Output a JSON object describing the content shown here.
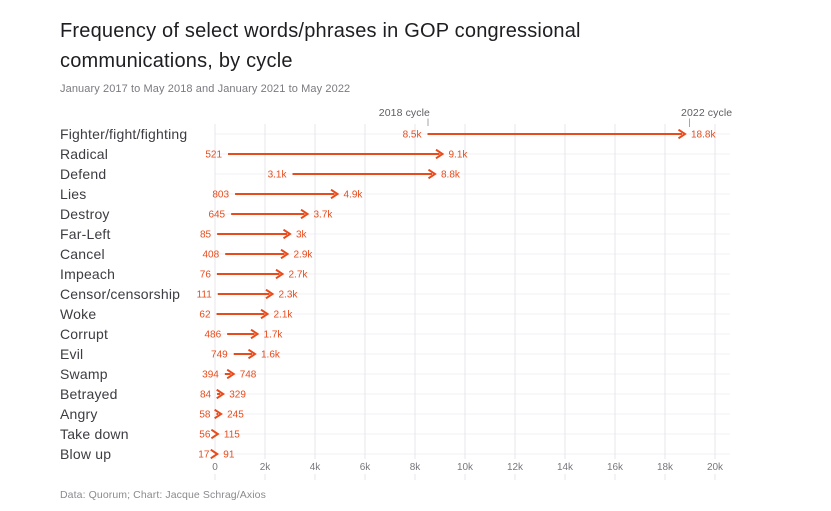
{
  "header": {
    "title": "Frequency of select words/phrases in GOP congressional communications, by cycle",
    "subtitle": "January 2017 to May 2018 and January 2021 to May 2022"
  },
  "footer": {
    "credit": "Data: Quorum; Chart: Jacque Schrag/Axios"
  },
  "chart_data": {
    "type": "arrow",
    "title": "Frequency of select words/phrases in GOP congressional communications, by cycle",
    "subtitle": "January 2017 to May 2018 and January 2021 to May 2022",
    "categories": [
      "Fighter/fight/fighting",
      "Radical",
      "Defend",
      "Lies",
      "Destroy",
      "Far-Left",
      "Cancel",
      "Impeach",
      "Censor/censorship",
      "Woke",
      "Corrupt",
      "Evil",
      "Swamp",
      "Betrayed",
      "Angry",
      "Take down",
      "Blow up"
    ],
    "series": [
      {
        "name": "2018 cycle",
        "values": [
          8500,
          521,
          3100,
          803,
          645,
          85,
          408,
          76,
          111,
          62,
          486,
          749,
          394,
          84,
          58,
          56,
          17
        ],
        "labels": [
          "8.5k",
          "521",
          "3.1k",
          "803",
          "645",
          "85",
          "408",
          "76",
          "111",
          "62",
          "486",
          "749",
          "394",
          "84",
          "58",
          "56",
          "17"
        ]
      },
      {
        "name": "2022 cycle",
        "values": [
          18800,
          9100,
          8800,
          4900,
          3700,
          3000,
          2900,
          2700,
          2300,
          2100,
          1700,
          1600,
          748,
          329,
          245,
          115,
          91
        ],
        "labels": [
          "18.8k",
          "9.1k",
          "8.8k",
          "4.9k",
          "3.7k",
          "3k",
          "2.9k",
          "2.7k",
          "2.3k",
          "2.1k",
          "1.7k",
          "1.6k",
          "748",
          "329",
          "245",
          "115",
          "91"
        ]
      }
    ],
    "annotations": [
      {
        "label": "2018 cycle",
        "value": 8500
      },
      {
        "label": "2022 cycle",
        "value": 18800
      }
    ],
    "x_axis": {
      "range": [
        0,
        20000
      ],
      "tick_values": [
        0,
        2000,
        4000,
        6000,
        8000,
        10000,
        12000,
        14000,
        16000,
        18000,
        20000
      ],
      "tick_labels": [
        "0",
        "2k",
        "4k",
        "6k",
        "8k",
        "10k",
        "12k",
        "14k",
        "16k",
        "18k",
        "20k"
      ]
    },
    "grid": true,
    "legend_position": "annotations-above-first-row",
    "colors": {
      "accent": "#e84c1d",
      "grid_vertical": "#e7e5ea",
      "grid_row": "#f1eff3",
      "annotation_tick": "#a5a5aa",
      "axis_text": "#77777d",
      "annotation_text": "#5d5d63",
      "category_text": "#3c3c42",
      "title_text": "#1e1e22",
      "muted_text": "#8b8b90"
    },
    "credit": "Data: Quorum; Chart: Jacque Schrag/Axios"
  }
}
